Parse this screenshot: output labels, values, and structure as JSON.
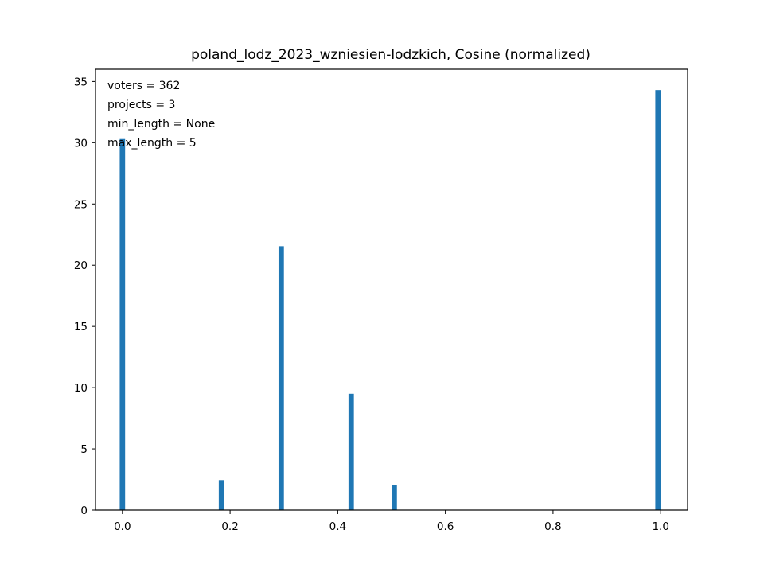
{
  "chart_data": {
    "type": "bar",
    "title": "poland_lodz_2023_wzniesien-lodzkich, Cosine (normalized)",
    "xlabel": "",
    "ylabel": "",
    "xlim": [
      -0.05,
      1.05
    ],
    "ylim": [
      0,
      36
    ],
    "bar_width": 0.01,
    "x_ticks": [
      0.0,
      0.2,
      0.4,
      0.6,
      0.8,
      1.0
    ],
    "x_tick_labels": [
      "0.0",
      "0.2",
      "0.4",
      "0.6",
      "0.8",
      "1.0"
    ],
    "y_ticks": [
      0,
      5,
      10,
      15,
      20,
      25,
      30,
      35
    ],
    "y_tick_labels": [
      "0",
      "5",
      "10",
      "15",
      "20",
      "25",
      "30",
      "35"
    ],
    "x": [
      0.0,
      0.184,
      0.295,
      0.425,
      0.505,
      0.995
    ],
    "values": [
      30.3,
      2.45,
      21.55,
      9.5,
      2.05,
      34.3
    ],
    "color": "#1f77b4",
    "grid": false,
    "annotations": [
      "voters = 362",
      "projects = 3",
      "min_length = None",
      "max_length = 5"
    ]
  }
}
